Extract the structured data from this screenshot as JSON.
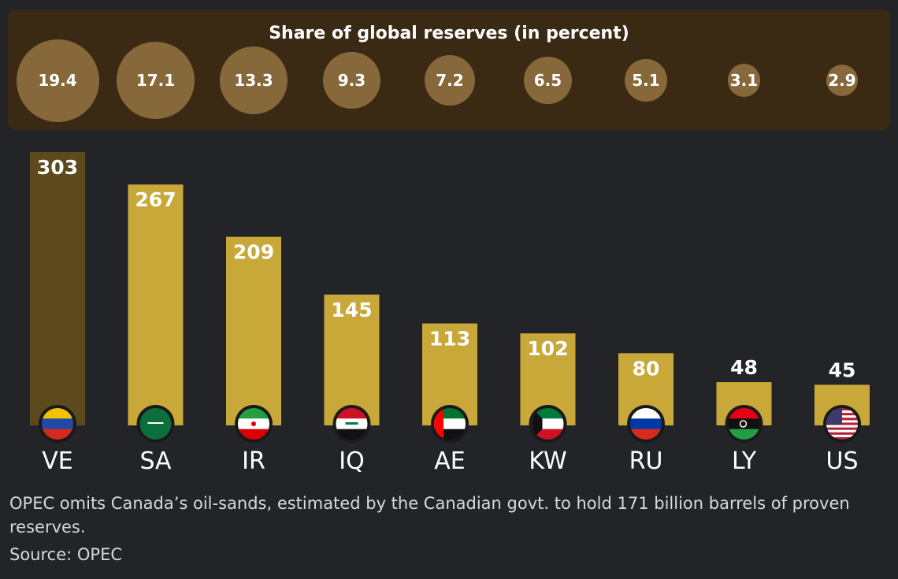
{
  "share_panel": {
    "title": "Share of global reserves (in percent)",
    "values": [
      "19.4",
      "17.1",
      "13.3",
      "9.3",
      "7.2",
      "6.5",
      "5.1",
      "3.1",
      "2.9"
    ]
  },
  "chart_data": {
    "type": "bar",
    "categories": [
      "VE",
      "SA",
      "IR",
      "IQ",
      "AE",
      "KW",
      "RU",
      "LY",
      "US"
    ],
    "values": [
      303,
      267,
      209,
      145,
      113,
      102,
      80,
      48,
      45
    ],
    "share_percent": [
      19.4,
      17.1,
      13.3,
      9.3,
      7.2,
      6.5,
      5.1,
      3.1,
      2.9
    ],
    "flags": [
      "venezuela-flag-icon",
      "saudi-arabia-flag-icon",
      "iran-flag-icon",
      "iraq-flag-icon",
      "uae-flag-icon",
      "kuwait-flag-icon",
      "russia-flag-icon",
      "libya-flag-icon",
      "usa-flag-icon"
    ],
    "colors": {
      "bar": "#c9a83a",
      "bar_highlight": "#5c4a1c",
      "bubble": "#86683a",
      "panel": "#3a2a14",
      "background": "#222428"
    }
  },
  "footnote": "OPEC omits Canada’s oil-sands, estimated by the Canadian govt. to hold 171 billion barrels of proven reserves.",
  "source": "Source: OPEC"
}
